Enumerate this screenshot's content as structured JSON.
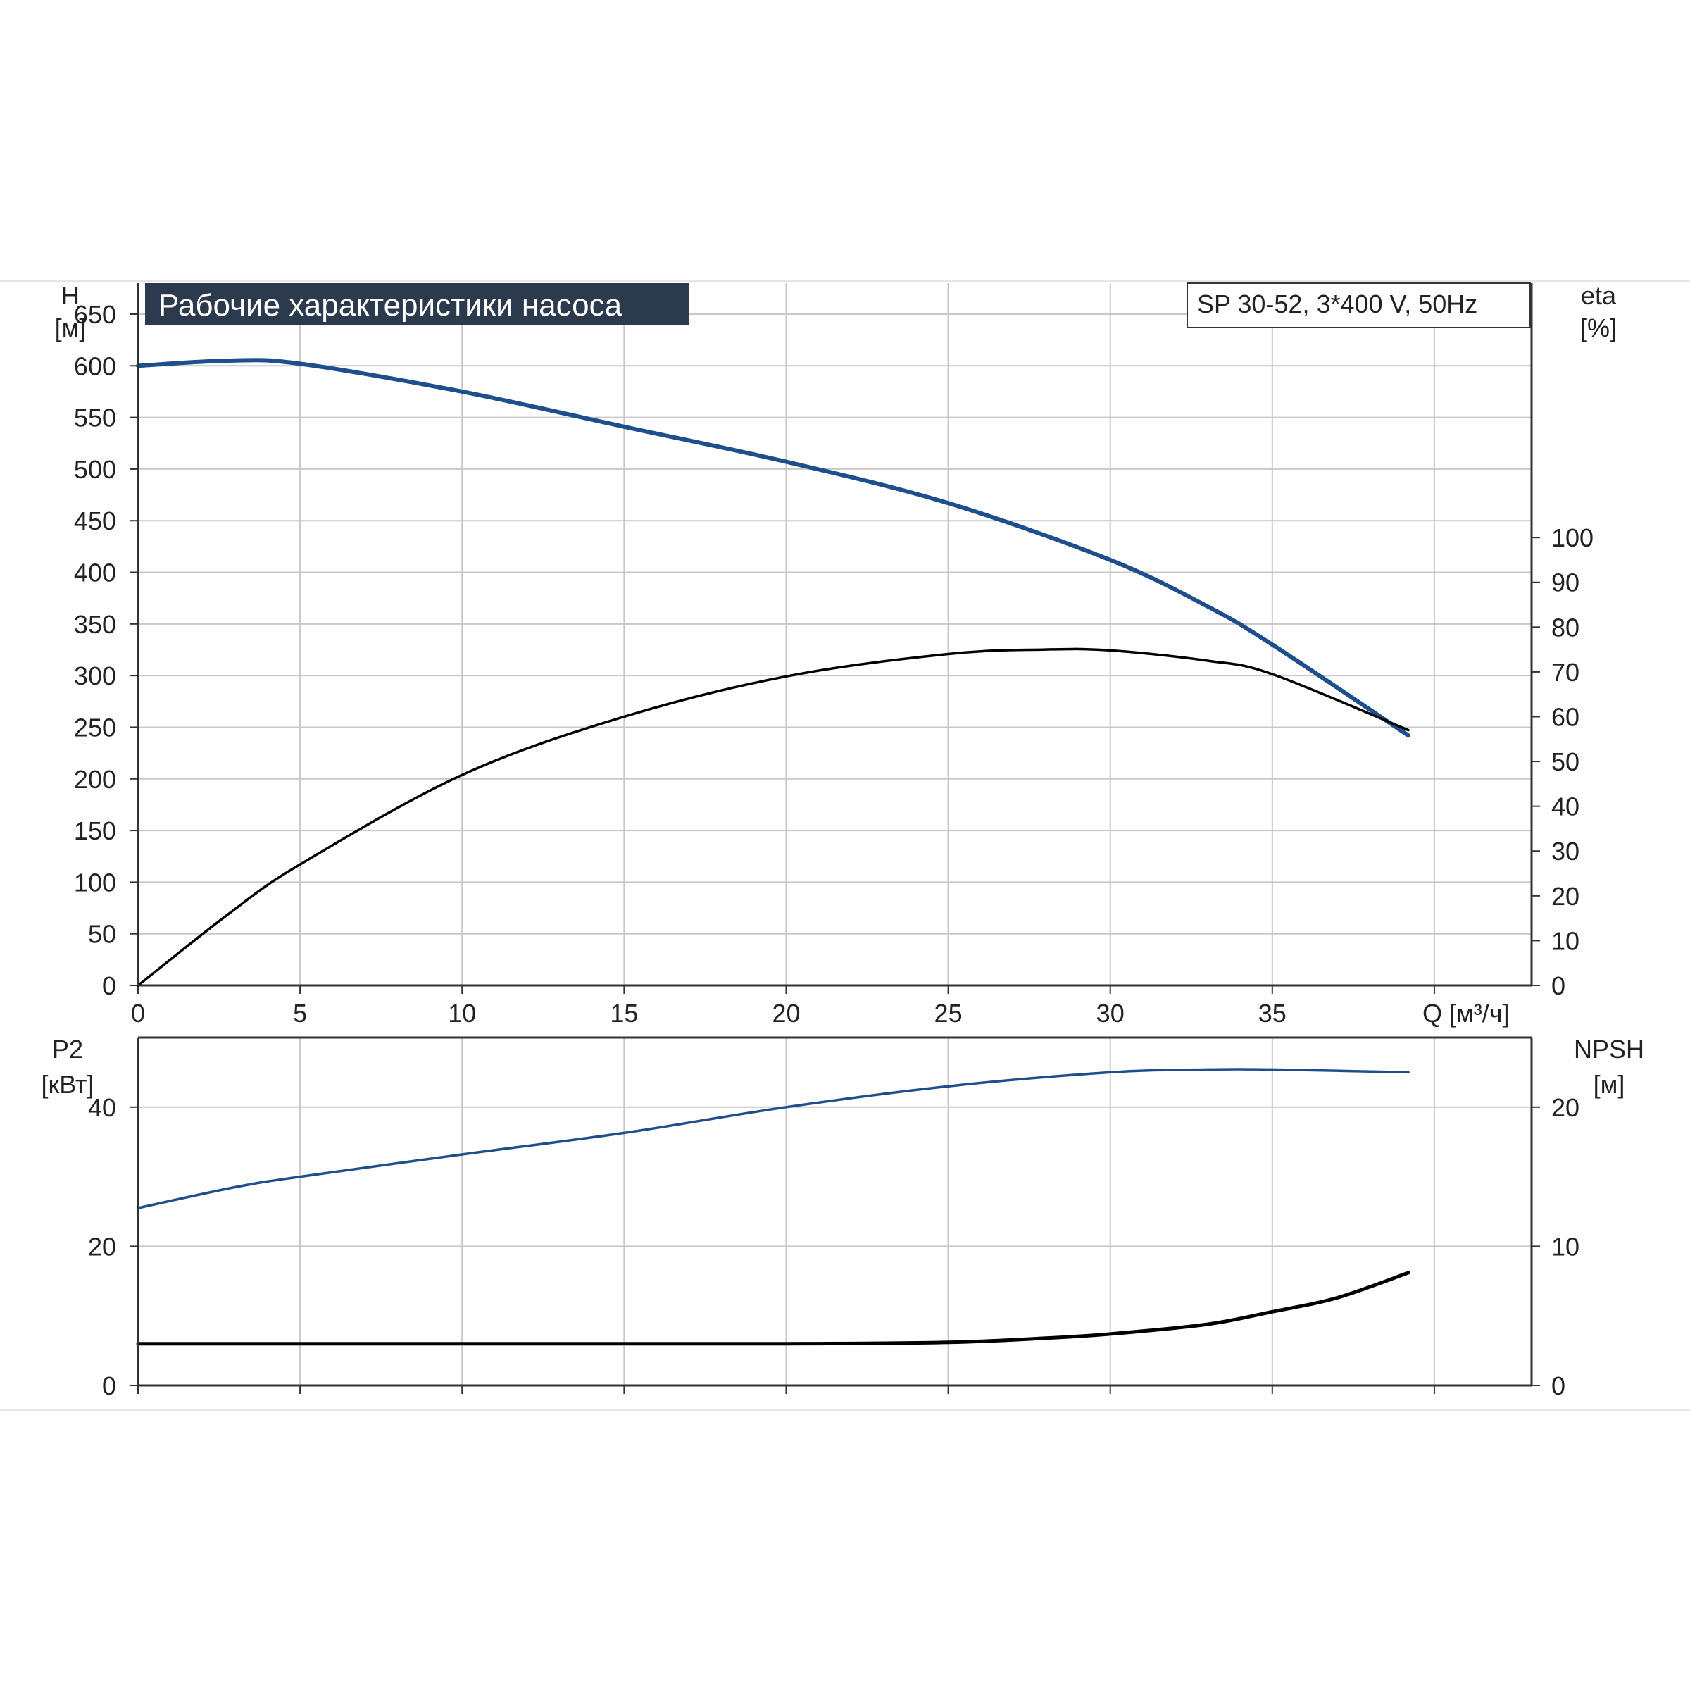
{
  "chart_data": [
    {
      "type": "line",
      "title": "Рабочие характеристики насоса",
      "model_label": "SP 30-52, 3*400 V, 50Hz",
      "xlabel": "Q [м³/ч]",
      "x_ticks": [
        0,
        5,
        10,
        15,
        20,
        25,
        30,
        35
      ],
      "xlim": [
        0,
        43
      ],
      "left_axis": {
        "name": "H",
        "unit": "[м]",
        "ylim": [
          0,
          680
        ],
        "ticks": [
          0,
          50,
          100,
          150,
          200,
          250,
          300,
          350,
          400,
          450,
          500,
          550,
          600,
          650
        ]
      },
      "right_axis": {
        "name": "eta",
        "unit": "[%]",
        "ylim": [
          0,
          156.8
        ],
        "ticks": [
          0,
          10,
          20,
          30,
          40,
          50,
          60,
          70,
          80,
          90,
          100
        ]
      },
      "grid": true,
      "series": [
        {
          "axis": "left",
          "color": "#1f4e8c",
          "points": [
            [
              0,
              600
            ],
            [
              2.8,
              605
            ],
            [
              5,
              602
            ],
            [
              10,
              575
            ],
            [
              15,
              541
            ],
            [
              20,
              507
            ],
            [
              25,
              467
            ],
            [
              30,
              412
            ],
            [
              33,
              367
            ],
            [
              35,
              330
            ],
            [
              39.2,
              242
            ]
          ]
        },
        {
          "axis": "right",
          "color": "#000000",
          "points": [
            [
              0,
              0
            ],
            [
              2.8,
              16
            ],
            [
              5,
              27
            ],
            [
              10,
              47
            ],
            [
              15,
              60
            ],
            [
              20,
              69
            ],
            [
              25,
              74
            ],
            [
              28,
              75
            ],
            [
              30,
              74.8
            ],
            [
              33,
              72.5
            ],
            [
              35,
              69.5
            ],
            [
              39.2,
              57
            ]
          ]
        }
      ]
    },
    {
      "type": "line",
      "xlim": [
        0,
        43
      ],
      "left_axis": {
        "name": "P2",
        "unit": "[кВт]",
        "ylim": [
          0,
          50
        ],
        "ticks": [
          0,
          20,
          40
        ]
      },
      "right_axis": {
        "name": "NPSH",
        "unit": "[м]",
        "ylim": [
          0,
          25
        ],
        "ticks": [
          0,
          10,
          20
        ]
      },
      "grid": true,
      "series": [
        {
          "axis": "left",
          "color": "#1f4e8c",
          "points": [
            [
              0,
              25.5
            ],
            [
              3,
              28.5
            ],
            [
              5,
              30
            ],
            [
              10,
              33.2
            ],
            [
              15,
              36.3
            ],
            [
              20,
              40
            ],
            [
              25,
              43
            ],
            [
              30,
              45
            ],
            [
              33,
              45.4
            ],
            [
              35,
              45.4
            ],
            [
              39.2,
              45
            ]
          ]
        },
        {
          "axis": "right",
          "color": "#000000",
          "points": [
            [
              0,
              3
            ],
            [
              2.8,
              3
            ],
            [
              10,
              3
            ],
            [
              20,
              3
            ],
            [
              25,
              3.1
            ],
            [
              28,
              3.4
            ],
            [
              30,
              3.7
            ],
            [
              33,
              4.4
            ],
            [
              35,
              5.3
            ],
            [
              37,
              6.3
            ],
            [
              39.2,
              8.1
            ]
          ]
        }
      ]
    }
  ]
}
